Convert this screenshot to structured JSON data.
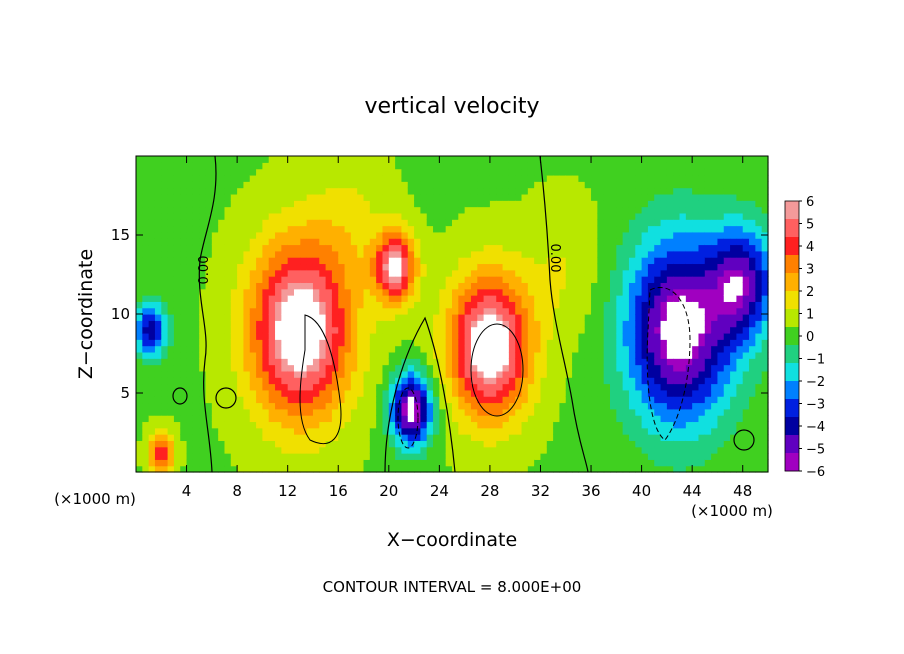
{
  "chart_data": {
    "type": "heatmap",
    "title": "vertical velocity",
    "xlabel": "X−coordinate",
    "ylabel": "Z−coordinate",
    "xlim": [
      0,
      50
    ],
    "ylim": [
      0,
      20
    ],
    "x_ticks": [
      "4",
      "8",
      "12",
      "16",
      "20",
      "24",
      "28",
      "32",
      "36",
      "40",
      "44",
      "48"
    ],
    "x_tick_values": [
      4,
      8,
      12,
      16,
      20,
      24,
      28,
      32,
      36,
      40,
      44,
      48
    ],
    "y_ticks": [
      "5",
      "10",
      "15"
    ],
    "y_tick_values": [
      5,
      10,
      15
    ],
    "x_unit_left": "(×1000 m)",
    "x_unit_right": "(×1000 m)",
    "footer": "CONTOUR INTERVAL = 8.000E+00",
    "contour_label_left": "0.00",
    "contour_label_right": "0.00",
    "colorbar": {
      "labels": [
        "6",
        "5",
        "4",
        "3",
        "2",
        "1",
        "0",
        "−1",
        "−2",
        "−3",
        "−4",
        "−5",
        "−6"
      ],
      "values": [
        6,
        5,
        4,
        3,
        2,
        1,
        0,
        -1,
        -2,
        -3,
        -4,
        -5,
        -6
      ],
      "colors": [
        "#f49a9a",
        "#ff6060",
        "#ff2020",
        "#ff8000",
        "#ffb000",
        "#f0e000",
        "#b8e800",
        "#40d020",
        "#20d080",
        "#10e0e0",
        "#0080ff",
        "#0020e0",
        "#0000a0",
        "#6000c0",
        "#a000c0"
      ]
    },
    "blobs": [
      {
        "x": 13,
        "z": 9,
        "w": 4.0,
        "v": 7
      },
      {
        "x": 21.8,
        "z": 4,
        "w": 1.6,
        "v": -7
      },
      {
        "x": 28,
        "z": 8,
        "w": 3.2,
        "v": 7
      },
      {
        "x": 20.5,
        "z": 13,
        "w": 1.6,
        "v": 6
      },
      {
        "x": 43,
        "z": 9,
        "w": 4.2,
        "v": -7
      },
      {
        "x": 48,
        "z": 12,
        "w": 2.5,
        "v": -5
      },
      {
        "x": 1.2,
        "z": 9,
        "w": 1.2,
        "v": -5
      },
      {
        "x": 2.0,
        "z": 1.2,
        "w": 1.0,
        "v": 4
      },
      {
        "x": 17,
        "z": 16,
        "w": 3.0,
        "v": 1
      },
      {
        "x": 34,
        "z": 13,
        "w": 3.0,
        "v": 1
      }
    ]
  }
}
